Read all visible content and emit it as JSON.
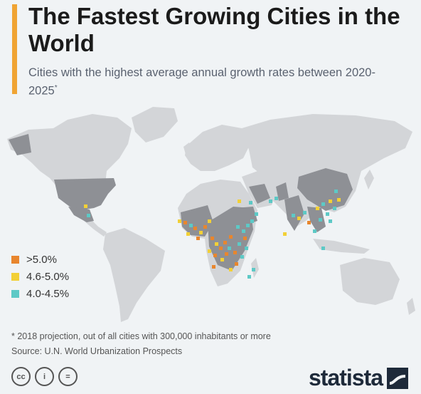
{
  "title": "The Fastest Growing Cities in the World",
  "subtitle": "Cities with the highest average annual growth rates between 2020-2025",
  "subtitle_marker": "*",
  "legend": [
    {
      "label": ">5.0%",
      "color": "#e8862e"
    },
    {
      "label": "4.6-5.0%",
      "color": "#f2d036"
    },
    {
      "label": "4.0-4.5%",
      "color": "#5dc9c6"
    }
  ],
  "footnote": "* 2018 projection, out of all cities with 300,000 inhabitants or more",
  "source": "Source: U.N. World Urbanization Prospects",
  "license_icons": [
    "creative-commons-icon",
    "attribution-icon",
    "no-derivatives-icon"
  ],
  "license_glyphs": [
    "cc",
    "i",
    "="
  ],
  "brand": "statista",
  "colors": {
    "accent": "#f0a433",
    "land": "#d3d5d8",
    "highlight_country": "#8e9095",
    "background": "#f0f3f5"
  }
}
